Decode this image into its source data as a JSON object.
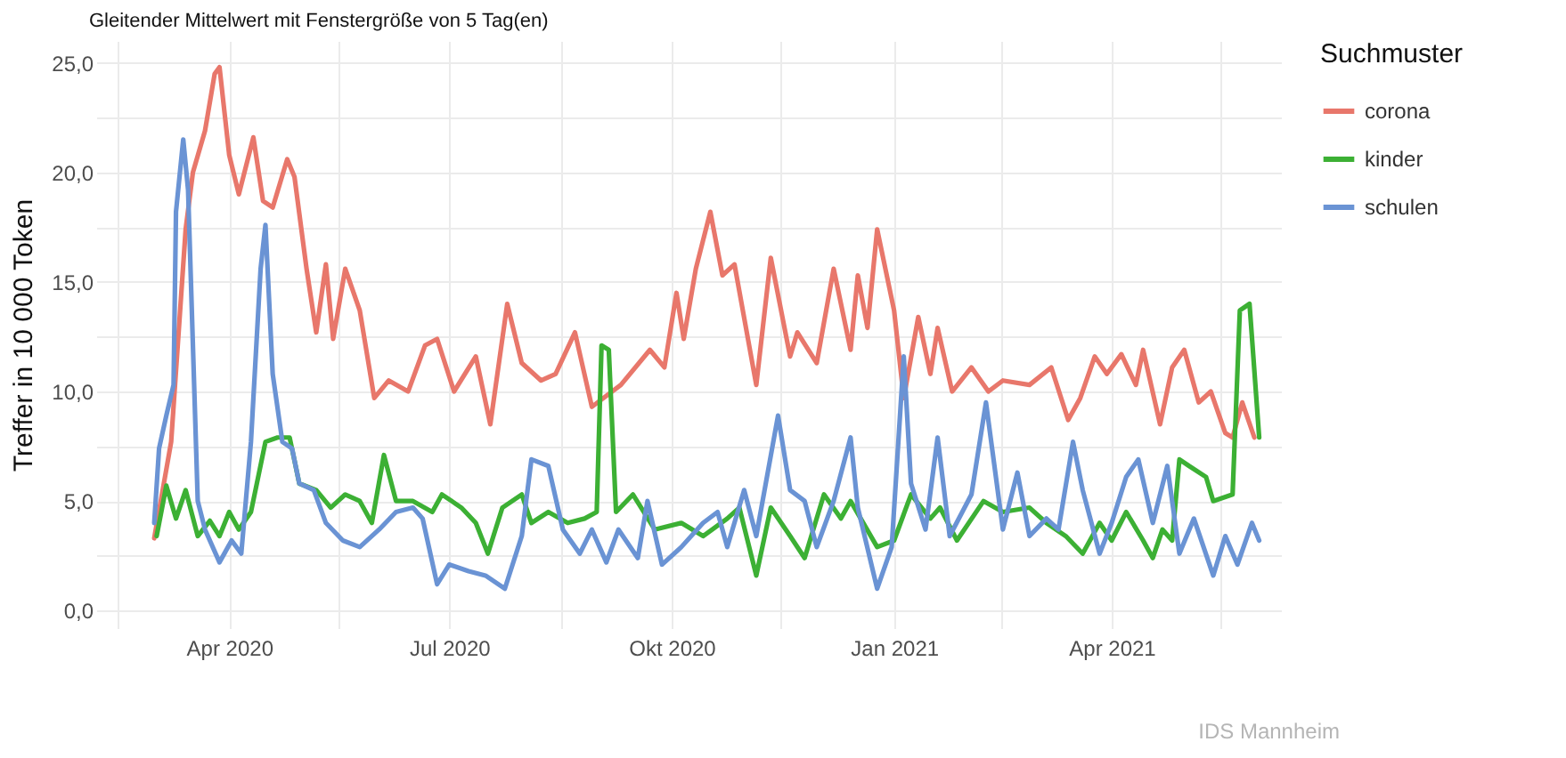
{
  "chart_data": {
    "type": "line",
    "title": "Gleitender Mittelwert mit Fenstergröße von 5 Tag(en)",
    "ylabel": "Treffer in 10 000 Token",
    "legend_title": "Suchmuster",
    "annotations": [
      "IDS Mannheim"
    ],
    "xlim": [
      "2020-02-06",
      "2021-06-10"
    ],
    "xticks": [
      {
        "value": "2020-02-15",
        "label": null
      },
      {
        "value": "2020-04-01",
        "label": "Apr 2020"
      },
      {
        "value": "2020-05-16",
        "label": null
      },
      {
        "value": "2020-07-01",
        "label": "Jul 2020"
      },
      {
        "value": "2020-08-16",
        "label": null
      },
      {
        "value": "2020-10-01",
        "label": "Okt 2020"
      },
      {
        "value": "2020-11-15",
        "label": null
      },
      {
        "value": "2021-01-01",
        "label": "Jan 2021"
      },
      {
        "value": "2021-02-14",
        "label": null
      },
      {
        "value": "2021-04-01",
        "label": "Apr 2021"
      },
      {
        "value": "2021-05-16",
        "label": null
      }
    ],
    "ylim": [
      -0.8,
      26
    ],
    "yticks": [
      {
        "value": 0,
        "label": "0,0"
      },
      {
        "value": 2.5,
        "label": null
      },
      {
        "value": 5,
        "label": "5,0"
      },
      {
        "value": 7.5,
        "label": null
      },
      {
        "value": 10,
        "label": "10,0"
      },
      {
        "value": 12.5,
        "label": null
      },
      {
        "value": 15,
        "label": "15,0"
      },
      {
        "value": 17.5,
        "label": null
      },
      {
        "value": 20,
        "label": "20,0"
      },
      {
        "value": 22.5,
        "label": null
      },
      {
        "value": 25,
        "label": "25,0"
      }
    ],
    "grid": true,
    "legend": "right",
    "line_style": "solid",
    "series": [
      {
        "name": "corona",
        "color": "#e8776b",
        "x": [
          "2020-03-01",
          "2020-03-08",
          "2020-03-14",
          "2020-03-17",
          "2020-03-22",
          "2020-03-26",
          "2020-03-28",
          "2020-04-01",
          "2020-04-05",
          "2020-04-11",
          "2020-04-15",
          "2020-04-19",
          "2020-04-25",
          "2020-04-28",
          "2020-05-03",
          "2020-05-07",
          "2020-05-11",
          "2020-05-14",
          "2020-05-19",
          "2020-05-25",
          "2020-05-31",
          "2020-06-06",
          "2020-06-14",
          "2020-06-21",
          "2020-06-26",
          "2020-07-03",
          "2020-07-12",
          "2020-07-18",
          "2020-07-25",
          "2020-07-31",
          "2020-08-08",
          "2020-08-14",
          "2020-08-22",
          "2020-08-29",
          "2020-09-10",
          "2020-09-22",
          "2020-09-28",
          "2020-10-03",
          "2020-10-06",
          "2020-10-11",
          "2020-10-17",
          "2020-10-22",
          "2020-10-27",
          "2020-11-05",
          "2020-11-11",
          "2020-11-19",
          "2020-11-22",
          "2020-11-30",
          "2020-12-07",
          "2020-12-14",
          "2020-12-17",
          "2020-12-21",
          "2020-12-25",
          "2021-01-01",
          "2021-01-05",
          "2021-01-11",
          "2021-01-16",
          "2021-01-19",
          "2021-01-25",
          "2021-02-02",
          "2021-02-09",
          "2021-02-15",
          "2021-02-26",
          "2021-03-07",
          "2021-03-14",
          "2021-03-19",
          "2021-03-25",
          "2021-03-30",
          "2021-04-05",
          "2021-04-11",
          "2021-04-14",
          "2021-04-21",
          "2021-04-26",
          "2021-05-01",
          "2021-05-07",
          "2021-05-12",
          "2021-05-18",
          "2021-05-21",
          "2021-05-25",
          "2021-05-30"
        ],
        "values": [
          3.3,
          7.7,
          17.4,
          20.0,
          21.9,
          24.5,
          24.8,
          20.8,
          19.0,
          21.6,
          18.7,
          18.4,
          20.6,
          19.8,
          15.6,
          12.7,
          15.8,
          12.4,
          15.6,
          13.7,
          9.7,
          10.5,
          10.0,
          12.1,
          12.4,
          10.0,
          11.6,
          8.5,
          14.0,
          11.3,
          10.5,
          10.8,
          12.7,
          9.3,
          10.3,
          11.9,
          11.1,
          14.5,
          12.4,
          15.6,
          18.2,
          15.3,
          15.8,
          10.3,
          16.1,
          11.6,
          12.7,
          11.3,
          15.6,
          11.9,
          15.3,
          12.9,
          17.4,
          13.7,
          9.7,
          13.4,
          10.8,
          12.9,
          10.0,
          11.1,
          10.0,
          10.5,
          10.3,
          11.1,
          8.7,
          9.7,
          11.6,
          10.8,
          11.7,
          10.3,
          11.9,
          8.5,
          11.1,
          11.9,
          9.5,
          10.0,
          8.1,
          7.9,
          9.5,
          7.9
        ]
      },
      {
        "name": "kinder",
        "color": "#3cb034",
        "x": [
          "2020-03-02",
          "2020-03-06",
          "2020-03-10",
          "2020-03-14",
          "2020-03-19",
          "2020-03-24",
          "2020-03-28",
          "2020-04-01",
          "2020-04-05",
          "2020-04-10",
          "2020-04-16",
          "2020-04-21",
          "2020-04-26",
          "2020-04-30",
          "2020-05-07",
          "2020-05-13",
          "2020-05-19",
          "2020-05-25",
          "2020-05-30",
          "2020-06-04",
          "2020-06-09",
          "2020-06-16",
          "2020-06-24",
          "2020-06-28",
          "2020-07-06",
          "2020-07-12",
          "2020-07-17",
          "2020-07-23",
          "2020-07-31",
          "2020-08-04",
          "2020-08-11",
          "2020-08-19",
          "2020-08-26",
          "2020-08-31",
          "2020-09-02",
          "2020-09-05",
          "2020-09-08",
          "2020-09-15",
          "2020-09-24",
          "2020-10-05",
          "2020-10-14",
          "2020-10-24",
          "2020-10-29",
          "2020-11-05",
          "2020-11-11",
          "2020-11-19",
          "2020-11-25",
          "2020-12-03",
          "2020-12-10",
          "2020-12-14",
          "2020-12-25",
          "2021-01-01",
          "2021-01-08",
          "2021-01-16",
          "2021-01-20",
          "2021-01-27",
          "2021-02-07",
          "2021-02-15",
          "2021-02-26",
          "2021-03-05",
          "2021-03-13",
          "2021-03-20",
          "2021-03-27",
          "2021-04-01",
          "2021-04-07",
          "2021-04-14",
          "2021-04-18",
          "2021-04-22",
          "2021-04-26",
          "2021-04-29",
          "2021-05-03",
          "2021-05-10",
          "2021-05-13",
          "2021-05-21",
          "2021-05-24",
          "2021-05-28",
          "2021-06-01"
        ],
        "values": [
          3.4,
          5.7,
          4.2,
          5.5,
          3.4,
          4.1,
          3.4,
          4.5,
          3.7,
          4.5,
          7.7,
          7.9,
          7.9,
          5.8,
          5.5,
          4.7,
          5.3,
          5.0,
          4.0,
          7.1,
          5.0,
          5.0,
          4.5,
          5.3,
          4.7,
          4.0,
          2.6,
          4.7,
          5.3,
          4.0,
          4.5,
          4.0,
          4.2,
          4.5,
          12.1,
          11.9,
          4.5,
          5.3,
          3.7,
          4.0,
          3.4,
          4.2,
          4.7,
          1.6,
          4.7,
          3.4,
          2.4,
          5.3,
          4.2,
          5.0,
          2.9,
          3.2,
          5.3,
          4.2,
          4.7,
          3.2,
          5.0,
          4.5,
          4.7,
          4.0,
          3.4,
          2.6,
          4.0,
          3.2,
          4.5,
          3.2,
          2.4,
          3.7,
          3.2,
          6.9,
          6.6,
          6.1,
          5.0,
          5.3,
          13.7,
          14.0,
          7.9
        ]
      },
      {
        "name": "schulen",
        "color": "#6a93d4",
        "x": [
          "2020-03-01",
          "2020-03-03",
          "2020-03-06",
          "2020-03-09",
          "2020-03-10",
          "2020-03-13",
          "2020-03-15",
          "2020-03-19",
          "2020-03-22",
          "2020-03-28",
          "2020-04-02",
          "2020-04-06",
          "2020-04-10",
          "2020-04-14",
          "2020-04-16",
          "2020-04-19",
          "2020-04-23",
          "2020-04-27",
          "2020-04-30",
          "2020-05-06",
          "2020-05-11",
          "2020-05-18",
          "2020-05-25",
          "2020-06-02",
          "2020-06-09",
          "2020-06-16",
          "2020-06-20",
          "2020-06-26",
          "2020-07-01",
          "2020-07-09",
          "2020-07-16",
          "2020-07-24",
          "2020-07-31",
          "2020-08-04",
          "2020-08-11",
          "2020-08-17",
          "2020-08-24",
          "2020-08-29",
          "2020-09-04",
          "2020-09-09",
          "2020-09-17",
          "2020-09-21",
          "2020-09-27",
          "2020-10-05",
          "2020-10-14",
          "2020-10-20",
          "2020-10-24",
          "2020-10-31",
          "2020-11-05",
          "2020-11-14",
          "2020-11-19",
          "2020-11-25",
          "2020-11-30",
          "2020-12-07",
          "2020-12-14",
          "2020-12-17",
          "2020-12-25",
          "2020-12-31",
          "2021-01-05",
          "2021-01-08",
          "2021-01-14",
          "2021-01-19",
          "2021-01-24",
          "2021-02-02",
          "2021-02-08",
          "2021-02-15",
          "2021-02-21",
          "2021-02-26",
          "2021-03-05",
          "2021-03-10",
          "2021-03-16",
          "2021-03-20",
          "2021-03-27",
          "2021-04-01",
          "2021-04-07",
          "2021-04-12",
          "2021-04-18",
          "2021-04-24",
          "2021-04-29",
          "2021-05-05",
          "2021-05-13",
          "2021-05-18",
          "2021-05-23",
          "2021-05-29",
          "2021-06-01"
        ],
        "values": [
          4.0,
          7.4,
          8.9,
          10.3,
          18.2,
          21.5,
          19.2,
          5.0,
          3.7,
          2.2,
          3.2,
          2.6,
          7.7,
          15.6,
          17.6,
          10.8,
          7.7,
          7.4,
          5.8,
          5.5,
          4.0,
          3.2,
          2.9,
          3.7,
          4.5,
          4.7,
          4.2,
          1.2,
          2.1,
          1.8,
          1.6,
          1.0,
          3.4,
          6.9,
          6.6,
          3.7,
          2.6,
          3.7,
          2.2,
          3.7,
          2.4,
          5.0,
          2.1,
          2.9,
          4.0,
          4.5,
          2.9,
          5.5,
          3.4,
          8.9,
          5.5,
          5.0,
          2.9,
          5.0,
          7.9,
          4.7,
          1.0,
          2.9,
          11.6,
          5.8,
          3.7,
          7.9,
          3.4,
          5.3,
          9.5,
          3.7,
          6.3,
          3.4,
          4.2,
          3.7,
          7.7,
          5.5,
          2.6,
          4.0,
          6.1,
          6.9,
          4.0,
          6.6,
          2.6,
          4.2,
          1.6,
          3.4,
          2.1,
          4.0,
          3.2
        ]
      }
    ]
  }
}
